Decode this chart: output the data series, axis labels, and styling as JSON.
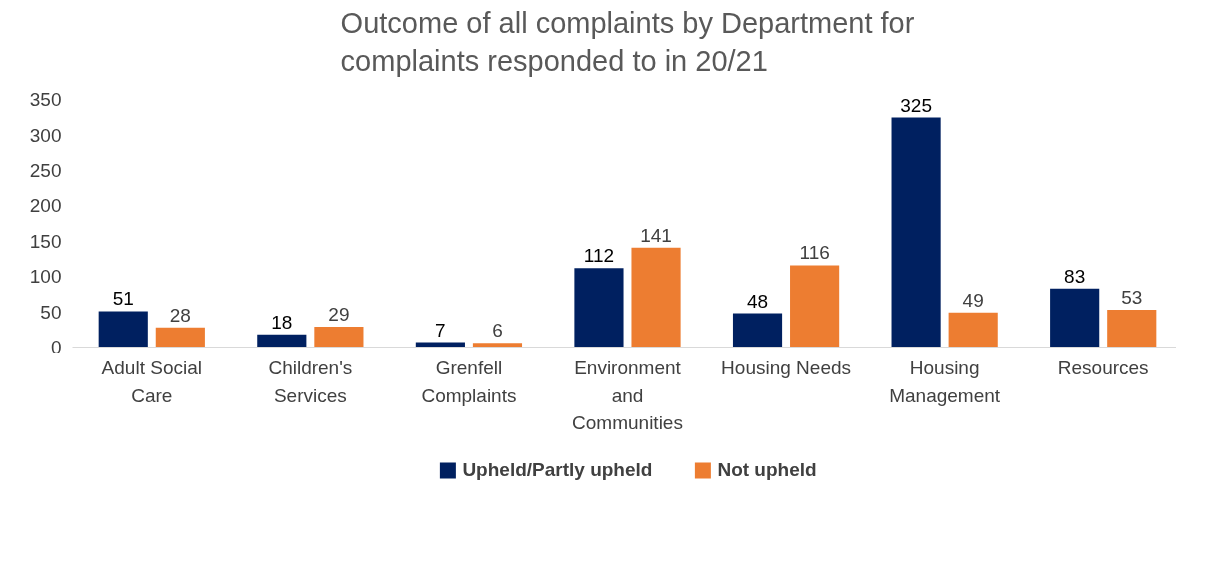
{
  "chart_data": {
    "type": "bar",
    "title": "Outcome of all complaints by Department for complaints responded to in 20/21",
    "categories": [
      "Adult Social Care",
      "Children's Services",
      "Grenfell Complaints",
      "Environment and Communities",
      "Housing Needs",
      "Housing Management",
      "Resources"
    ],
    "series": [
      {
        "name": "Upheld/Partly upheld",
        "color": "#002060",
        "values": [
          51,
          18,
          7,
          112,
          48,
          325,
          83
        ]
      },
      {
        "name": "Not upheld",
        "color": "#ed7d31",
        "values": [
          28,
          29,
          6,
          141,
          116,
          49,
          53
        ]
      }
    ],
    "ylim": [
      0,
      350
    ],
    "yticks": [
      0,
      50,
      100,
      150,
      200,
      250,
      300,
      350
    ],
    "grid": false,
    "legend": "bottom",
    "data_labels": true
  }
}
